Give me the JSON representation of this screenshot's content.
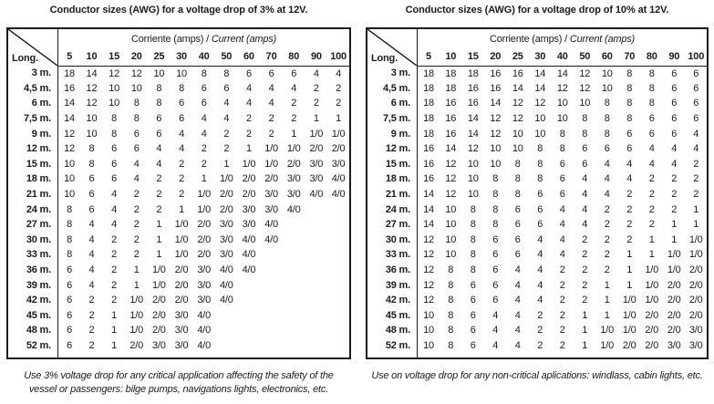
{
  "tables": [
    {
      "title": "Conductor sizes (AWG) for a voltage drop of 3% at 12V.",
      "header": {
        "corner_label": "Long.",
        "label_es": "Corriente (amps) /",
        "label_en": "Current (amps)",
        "amp_columns": [
          "5",
          "10",
          "15",
          "20",
          "25",
          "30",
          "40",
          "50",
          "60",
          "70",
          "80",
          "90",
          "100"
        ]
      },
      "rows": [
        {
          "label": "3 m.",
          "values": [
            "18",
            "14",
            "12",
            "12",
            "10",
            "10",
            "8",
            "8",
            "6",
            "6",
            "6",
            "4",
            "4"
          ]
        },
        {
          "label": "4,5 m.",
          "values": [
            "16",
            "12",
            "10",
            "10",
            "8",
            "8",
            "6",
            "6",
            "4",
            "4",
            "4",
            "2",
            "2"
          ]
        },
        {
          "label": "6 m.",
          "values": [
            "14",
            "12",
            "10",
            "8",
            "8",
            "6",
            "6",
            "4",
            "4",
            "4",
            "2",
            "2",
            "2"
          ]
        },
        {
          "label": "7,5 m.",
          "values": [
            "14",
            "10",
            "8",
            "8",
            "6",
            "6",
            "4",
            "4",
            "2",
            "2",
            "2",
            "1",
            "1"
          ]
        },
        {
          "label": "9 m.",
          "values": [
            "12",
            "10",
            "8",
            "6",
            "6",
            "4",
            "4",
            "2",
            "2",
            "2",
            "1",
            "1/0",
            "1/0"
          ]
        },
        {
          "label": "12 m.",
          "values": [
            "12",
            "8",
            "6",
            "6",
            "4",
            "4",
            "2",
            "2",
            "1",
            "1/0",
            "1/0",
            "2/0",
            "2/0"
          ]
        },
        {
          "label": "15 m.",
          "values": [
            "10",
            "8",
            "6",
            "4",
            "4",
            "2",
            "2",
            "1",
            "1/0",
            "1/0",
            "2/0",
            "3/0",
            "3/0"
          ]
        },
        {
          "label": "18 m.",
          "values": [
            "10",
            "6",
            "6",
            "4",
            "2",
            "2",
            "1",
            "1/0",
            "2/0",
            "2/0",
            "3/0",
            "3/0",
            "4/0"
          ]
        },
        {
          "label": "21 m.",
          "values": [
            "10",
            "6",
            "4",
            "2",
            "2",
            "2",
            "1/0",
            "2/0",
            "2/0",
            "3/0",
            "3/0",
            "4/0",
            "4/0"
          ]
        },
        {
          "label": "24 m.",
          "values": [
            "8",
            "6",
            "4",
            "2",
            "2",
            "1",
            "1/0",
            "2/0",
            "3/0",
            "3/0",
            "4/0",
            "",
            ""
          ]
        },
        {
          "label": "27 m.",
          "values": [
            "8",
            "4",
            "4",
            "2",
            "1",
            "1/0",
            "2/0",
            "3/0",
            "3/0",
            "4/0",
            "",
            "",
            ""
          ]
        },
        {
          "label": "30 m.",
          "values": [
            "8",
            "4",
            "2",
            "2",
            "1",
            "1/0",
            "2/0",
            "3/0",
            "4/0",
            "4/0",
            "",
            "",
            ""
          ]
        },
        {
          "label": "33 m.",
          "values": [
            "8",
            "4",
            "2",
            "2",
            "1",
            "1/0",
            "2/0",
            "3/0",
            "4/0",
            "",
            "",
            "",
            ""
          ]
        },
        {
          "label": "36 m.",
          "values": [
            "6",
            "4",
            "2",
            "1",
            "1/0",
            "2/0",
            "3/0",
            "4/0",
            "4/0",
            "",
            "",
            "",
            ""
          ]
        },
        {
          "label": "39 m.",
          "values": [
            "6",
            "4",
            "2",
            "1",
            "1/0",
            "2/0",
            "3/0",
            "4/0",
            "",
            "",
            "",
            "",
            ""
          ]
        },
        {
          "label": "42 m.",
          "values": [
            "6",
            "2",
            "2",
            "1/0",
            "2/0",
            "2/0",
            "3/0",
            "4/0",
            "",
            "",
            "",
            "",
            ""
          ]
        },
        {
          "label": "45 m.",
          "values": [
            "6",
            "2",
            "1",
            "1/0",
            "2/0",
            "3/0",
            "4/0",
            "",
            "",
            "",
            "",
            "",
            ""
          ]
        },
        {
          "label": "48 m.",
          "values": [
            "6",
            "2",
            "1",
            "1/0",
            "2/0",
            "3/0",
            "4/0",
            "",
            "",
            "",
            "",
            "",
            ""
          ]
        },
        {
          "label": "52 m.",
          "values": [
            "6",
            "2",
            "1",
            "2/0",
            "3/0",
            "3/0",
            "4/0",
            "",
            "",
            "",
            "",
            "",
            ""
          ]
        }
      ],
      "footnote": "Use 3% voltage drop for any critical application affecting the safety of the vessel or passengers: bilge pumps, navigations lights, electronics, etc."
    },
    {
      "title": "Conductor sizes (AWG) for a voltage drop of 10% at 12V.",
      "header": {
        "corner_label": "Long.",
        "label_es": "Corriente (amps) /",
        "label_en": "Current (amps)",
        "amp_columns": [
          "5",
          "10",
          "15",
          "20",
          "25",
          "30",
          "40",
          "50",
          "60",
          "70",
          "80",
          "90",
          "100"
        ]
      },
      "rows": [
        {
          "label": "3 m.",
          "values": [
            "18",
            "18",
            "18",
            "16",
            "16",
            "14",
            "14",
            "12",
            "10",
            "8",
            "8",
            "6",
            "6"
          ]
        },
        {
          "label": "4,5 m.",
          "values": [
            "18",
            "18",
            "16",
            "16",
            "14",
            "14",
            "12",
            "12",
            "10",
            "8",
            "8",
            "6",
            "6"
          ]
        },
        {
          "label": "6 m.",
          "values": [
            "18",
            "16",
            "16",
            "14",
            "12",
            "12",
            "10",
            "10",
            "8",
            "8",
            "8",
            "6",
            "6"
          ]
        },
        {
          "label": "7,5 m.",
          "values": [
            "18",
            "16",
            "14",
            "12",
            "12",
            "10",
            "10",
            "8",
            "8",
            "8",
            "6",
            "6",
            "6"
          ]
        },
        {
          "label": "9 m.",
          "values": [
            "18",
            "16",
            "14",
            "12",
            "10",
            "10",
            "8",
            "8",
            "8",
            "6",
            "6",
            "6",
            "4"
          ]
        },
        {
          "label": "12 m.",
          "values": [
            "16",
            "14",
            "12",
            "10",
            "10",
            "8",
            "8",
            "6",
            "6",
            "6",
            "4",
            "4",
            "4"
          ]
        },
        {
          "label": "15 m.",
          "values": [
            "16",
            "12",
            "10",
            "10",
            "8",
            "8",
            "6",
            "6",
            "4",
            "4",
            "4",
            "4",
            "2"
          ]
        },
        {
          "label": "18 m.",
          "values": [
            "16",
            "12",
            "10",
            "8",
            "8",
            "8",
            "6",
            "4",
            "4",
            "4",
            "2",
            "2",
            "2"
          ]
        },
        {
          "label": "21 m.",
          "values": [
            "14",
            "12",
            "10",
            "8",
            "8",
            "6",
            "6",
            "4",
            "4",
            "2",
            "2",
            "2",
            "2"
          ]
        },
        {
          "label": "24 m.",
          "values": [
            "14",
            "10",
            "8",
            "8",
            "6",
            "6",
            "4",
            "4",
            "2",
            "2",
            "2",
            "2",
            "1"
          ]
        },
        {
          "label": "27 m.",
          "values": [
            "14",
            "10",
            "8",
            "8",
            "6",
            "6",
            "4",
            "4",
            "2",
            "2",
            "2",
            "1",
            "1"
          ]
        },
        {
          "label": "30 m.",
          "values": [
            "12",
            "10",
            "8",
            "6",
            "6",
            "4",
            "4",
            "2",
            "2",
            "2",
            "1",
            "1",
            "1/0"
          ]
        },
        {
          "label": "33 m.",
          "values": [
            "12",
            "10",
            "8",
            "6",
            "6",
            "4",
            "4",
            "2",
            "2",
            "1",
            "1",
            "1/0",
            "1/0"
          ]
        },
        {
          "label": "36 m.",
          "values": [
            "12",
            "8",
            "8",
            "6",
            "4",
            "4",
            "2",
            "2",
            "2",
            "1",
            "1/0",
            "1/0",
            "2/0"
          ]
        },
        {
          "label": "39 m.",
          "values": [
            "12",
            "8",
            "6",
            "6",
            "4",
            "4",
            "2",
            "2",
            "1",
            "1",
            "1/0",
            "2/0",
            "2/0"
          ]
        },
        {
          "label": "42 m.",
          "values": [
            "12",
            "8",
            "6",
            "6",
            "4",
            "4",
            "2",
            "2",
            "1",
            "1/0",
            "1/0",
            "2/0",
            "2/0"
          ]
        },
        {
          "label": "45 m.",
          "values": [
            "10",
            "8",
            "6",
            "4",
            "4",
            "2",
            "2",
            "1",
            "1",
            "1/0",
            "2/0",
            "2/0",
            "2/0"
          ]
        },
        {
          "label": "48 m.",
          "values": [
            "10",
            "8",
            "6",
            "4",
            "4",
            "2",
            "2",
            "1",
            "1/0",
            "1/0",
            "2/0",
            "2/0",
            "3/0"
          ]
        },
        {
          "label": "52 m.",
          "values": [
            "10",
            "8",
            "6",
            "4",
            "4",
            "2",
            "2",
            "1",
            "1/0",
            "2/0",
            "2/0",
            "3/0",
            "3/0"
          ]
        }
      ],
      "footnote": "Use on voltage drop for any non-critical aplications: windlass, cabin lights, etc."
    }
  ],
  "colors": {
    "text": "#1c1c1c",
    "border": "#1c1c1c",
    "background": "#ffffff"
  }
}
